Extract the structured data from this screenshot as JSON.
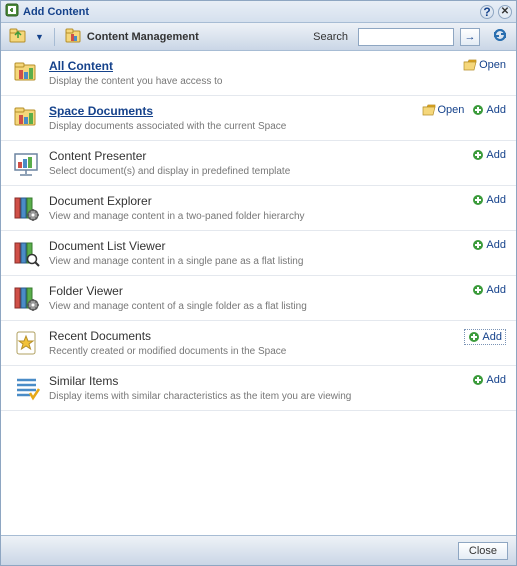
{
  "window": {
    "title": "Add Content",
    "help_icon": "?",
    "close_icon": "✕"
  },
  "toolbar": {
    "breadcrumb": "Content Management",
    "search_label": "Search",
    "search_value": "",
    "go_arrow": "→"
  },
  "actions": {
    "open": "Open",
    "add": "Add"
  },
  "footer": {
    "close": "Close"
  },
  "items": [
    {
      "title": "All Content",
      "desc": "Display the content you have access to",
      "title_style": "linkish bold",
      "icon": "multi-folder",
      "show_open": true,
      "show_add": false,
      "add_boxed": false
    },
    {
      "title": "Space Documents",
      "desc": "Display documents associated with the current Space",
      "title_style": "linkish bold",
      "icon": "multi-folder",
      "show_open": true,
      "show_add": true,
      "add_boxed": false
    },
    {
      "title": "Content Presenter",
      "desc": "Select document(s) and display in predefined template",
      "title_style": "plain",
      "icon": "presenter",
      "show_open": false,
      "show_add": true,
      "add_boxed": false
    },
    {
      "title": "Document Explorer",
      "desc": "View and manage content in a two-paned folder hierarchy",
      "title_style": "plain",
      "icon": "books-gear",
      "show_open": false,
      "show_add": true,
      "add_boxed": false
    },
    {
      "title": "Document List Viewer",
      "desc": "View and manage content in a single pane as a flat listing",
      "title_style": "plain",
      "icon": "books-zoom",
      "show_open": false,
      "show_add": true,
      "add_boxed": false
    },
    {
      "title": "Folder Viewer",
      "desc": "View and manage content of a single folder as a flat listing",
      "title_style": "plain",
      "icon": "books-gear",
      "show_open": false,
      "show_add": true,
      "add_boxed": false
    },
    {
      "title": "Recent Documents",
      "desc": "Recently created or modified documents in the Space",
      "title_style": "plain",
      "icon": "star-doc",
      "show_open": false,
      "show_add": true,
      "add_boxed": true
    },
    {
      "title": "Similar Items",
      "desc": "Display items with similar characteristics as the item you are viewing",
      "title_style": "plain",
      "icon": "list-check",
      "show_open": false,
      "show_add": true,
      "add_boxed": false
    }
  ],
  "colors": {
    "title_blue": "#15428b",
    "desc_grey": "#777777",
    "border": "#a7bcd4",
    "open_folder": "#e6a817",
    "add_green": "#3b9b3b"
  },
  "icons": {
    "multi-folder": {
      "type": "svg-multi-folder"
    },
    "presenter": {
      "type": "svg-presenter"
    },
    "books-gear": {
      "type": "svg-books-gear"
    },
    "books-zoom": {
      "type": "svg-books-zoom"
    },
    "star-doc": {
      "type": "svg-star-doc"
    },
    "list-check": {
      "type": "svg-list-check"
    }
  }
}
